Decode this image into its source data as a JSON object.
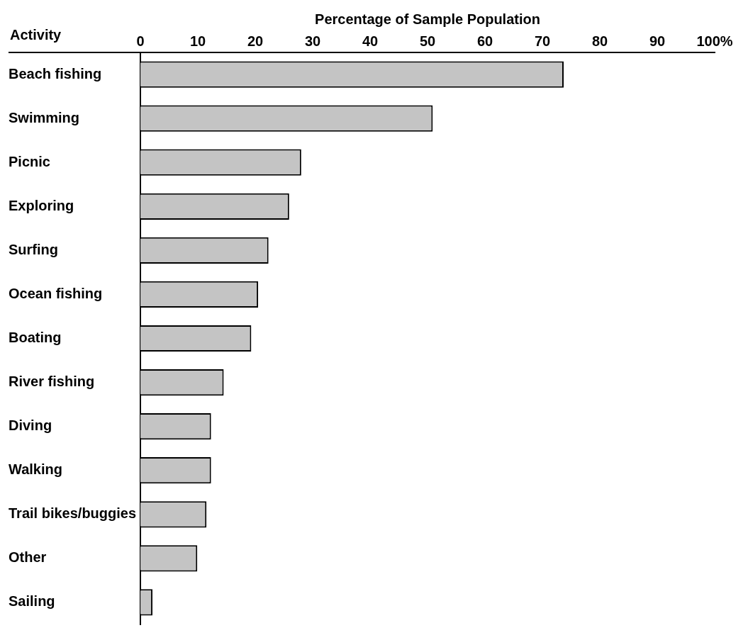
{
  "chart_data": {
    "type": "bar",
    "orientation": "horizontal",
    "xlabel": "Percentage of Sample Population",
    "ylabel": "Activity",
    "categories": [
      "Beach fishing",
      "Swimming",
      "Picnic",
      "Exploring",
      "Surfing",
      "Ocean fishing",
      "Boating",
      "River fishing",
      "Diving",
      "Walking",
      "Trail bikes/buggies",
      "Other",
      "Sailing"
    ],
    "values": [
      73.7,
      50.9,
      28,
      25.9,
      22.3,
      20.5,
      19.3,
      14.5,
      12.3,
      12.3,
      11.5,
      9.9,
      2.1
    ],
    "color": "#c4c4c4",
    "xlim": [
      0,
      100
    ],
    "xticks": [
      0,
      10,
      20,
      30,
      40,
      50,
      60,
      70,
      80,
      90,
      {
        "value": 100,
        "label": "100%"
      }
    ],
    "grid": false,
    "legend": false
  }
}
